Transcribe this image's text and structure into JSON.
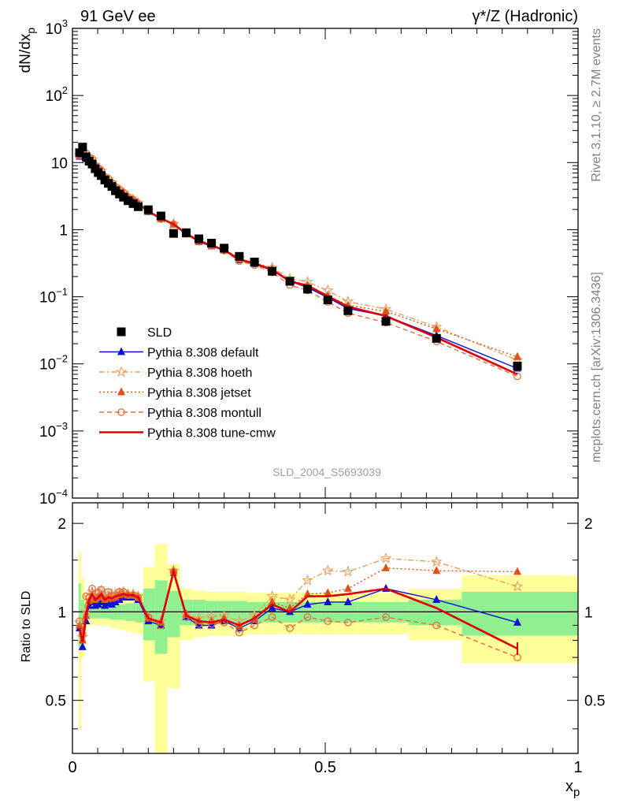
{
  "header": {
    "left": "91 GeV ee",
    "right": "γ*/Z (Hadronic)",
    "side_top": "Rivet 3.1.10, ≥ 2.7M events",
    "side_bottom": "mcplots.cern.ch [arXiv:1306.3436]",
    "watermark": "SLD_2004_S5693039"
  },
  "axis_labels": {
    "ylabel_top": "dN/dx",
    "ylabel_top_sub": "p",
    "ylabel_bottom": "Ratio to SLD",
    "xlabel": "x",
    "xlabel_sub": "p"
  },
  "top_ticks": [
    {
      "v": 1000,
      "b": "10",
      "e": "3"
    },
    {
      "v": 100,
      "b": "10",
      "e": "2"
    },
    {
      "v": 10,
      "b": "10",
      "e": ""
    },
    {
      "v": 1,
      "b": "1",
      "e": ""
    },
    {
      "v": 0.1,
      "b": "10",
      "e": "−1"
    },
    {
      "v": 0.01,
      "b": "10",
      "e": "−2"
    },
    {
      "v": 0.001,
      "b": "10",
      "e": "−3"
    },
    {
      "v": 0.0001,
      "b": "10",
      "e": "−4"
    }
  ],
  "ratio_ticks": [
    "0.5",
    "1",
    "2"
  ],
  "x_ticks": [
    "0",
    "0.5",
    "1"
  ],
  "colors": {
    "default": "#1010d0",
    "hoeth": "#e8a060",
    "jetset": "#e05010",
    "montull": "#e07040",
    "tunecmw": "#e00000",
    "band_green": "#90f090",
    "band_yellow": "#ffff99"
  },
  "chart_data": {
    "type": "scatter",
    "x": [
      0.014,
      0.02,
      0.027,
      0.033,
      0.039,
      0.045,
      0.051,
      0.057,
      0.064,
      0.071,
      0.078,
      0.085,
      0.093,
      0.101,
      0.11,
      0.12,
      0.13,
      0.15,
      0.175,
      0.2,
      0.225,
      0.25,
      0.275,
      0.3,
      0.33,
      0.36,
      0.395,
      0.43,
      0.465,
      0.505,
      0.545,
      0.62,
      0.72,
      0.88
    ],
    "xlim": [
      0,
      1
    ],
    "ylim_top": [
      0.0001,
      1000
    ],
    "ylim_ratio": [
      0.33,
      2.35
    ],
    "yscale": "log",
    "series": [
      {
        "name": "SLD",
        "key": "sld",
        "values": [
          14,
          17,
          12.2,
          10.5,
          9.5,
          8.1,
          7.1,
          6.4,
          5.5,
          4.9,
          4.4,
          3.8,
          3.4,
          3.05,
          2.7,
          2.45,
          2.2,
          1.98,
          1.6,
          0.88,
          0.9,
          0.73,
          0.63,
          0.53,
          0.4,
          0.33,
          0.24,
          0.17,
          0.13,
          0.09,
          0.062,
          0.043,
          0.024,
          0.0093
        ]
      },
      {
        "name": "Pythia 8.308 default",
        "key": "default",
        "ratio": [
          0.88,
          0.76,
          0.93,
          1.05,
          1.08,
          1.05,
          1.06,
          1.08,
          1.05,
          1.07,
          1.06,
          1.08,
          1.1,
          1.12,
          1.12,
          1.12,
          1.1,
          0.93,
          0.9,
          1.36,
          0.96,
          0.9,
          0.9,
          0.93,
          0.88,
          0.93,
          1.03,
          1.0,
          1.06,
          1.08,
          1.08,
          1.2,
          1.1,
          0.92
        ]
      },
      {
        "name": "Pythia 8.308 hoeth",
        "key": "hoeth",
        "ratio": [
          0.92,
          0.82,
          1.0,
          1.12,
          1.17,
          1.14,
          1.17,
          1.18,
          1.13,
          1.15,
          1.15,
          1.15,
          1.16,
          1.17,
          1.15,
          1.15,
          1.13,
          0.96,
          0.93,
          1.38,
          0.98,
          0.95,
          0.96,
          0.97,
          0.93,
          0.97,
          1.13,
          1.1,
          1.28,
          1.38,
          1.37,
          1.52,
          1.48,
          1.22
        ]
      },
      {
        "name": "Pythia 8.308 jetset",
        "key": "jetset",
        "ratio": [
          0.9,
          0.8,
          0.97,
          1.09,
          1.12,
          1.1,
          1.12,
          1.13,
          1.1,
          1.12,
          1.11,
          1.12,
          1.14,
          1.15,
          1.14,
          1.14,
          1.12,
          0.95,
          0.92,
          1.38,
          0.98,
          0.93,
          0.93,
          0.95,
          0.9,
          0.95,
          1.08,
          1.03,
          1.15,
          1.16,
          1.2,
          1.41,
          1.38,
          1.37
        ]
      },
      {
        "name": "Pythia 8.308 montull",
        "key": "montull",
        "ratio": [
          0.93,
          0.84,
          1.13,
          1.12,
          1.2,
          1.11,
          1.16,
          1.19,
          1.11,
          1.17,
          1.13,
          1.14,
          1.17,
          1.17,
          1.14,
          1.14,
          1.12,
          0.96,
          0.9,
          1.37,
          0.96,
          0.91,
          0.91,
          0.92,
          0.85,
          0.9,
          0.96,
          0.88,
          0.96,
          0.93,
          0.92,
          0.96,
          0.9,
          0.7
        ]
      },
      {
        "name": "Pythia 8.308 tune-cmw",
        "key": "tunecmw",
        "ratio": [
          0.88,
          0.79,
          0.98,
          1.1,
          1.15,
          1.1,
          1.12,
          1.15,
          1.1,
          1.12,
          1.11,
          1.13,
          1.14,
          1.15,
          1.14,
          1.14,
          1.12,
          0.95,
          0.92,
          1.37,
          0.97,
          0.93,
          0.92,
          0.94,
          0.9,
          0.95,
          1.06,
          1.0,
          1.13,
          1.13,
          1.15,
          1.2,
          1.03,
          0.75
        ]
      }
    ],
    "bands": {
      "edges": [
        0.012,
        0.017,
        0.024,
        0.03,
        0.036,
        0.042,
        0.048,
        0.054,
        0.06,
        0.067,
        0.074,
        0.081,
        0.089,
        0.097,
        0.105,
        0.115,
        0.125,
        0.14,
        0.163,
        0.188,
        0.213,
        0.238,
        0.263,
        0.288,
        0.315,
        0.345,
        0.375,
        0.415,
        0.445,
        0.485,
        0.525,
        0.565,
        0.665,
        0.77,
        1.0
      ],
      "green": [
        0.25,
        0.1,
        0.05,
        0.05,
        0.05,
        0.05,
        0.05,
        0.05,
        0.05,
        0.05,
        0.06,
        0.06,
        0.06,
        0.06,
        0.07,
        0.07,
        0.08,
        0.2,
        0.28,
        0.18,
        0.1,
        0.1,
        0.09,
        0.09,
        0.09,
        0.08,
        0.08,
        0.08,
        0.08,
        0.08,
        0.08,
        0.08,
        0.1,
        0.17,
        0.17
      ],
      "yellow": [
        0.6,
        0.3,
        0.15,
        0.1,
        0.1,
        0.1,
        0.1,
        0.1,
        0.1,
        0.1,
        0.12,
        0.12,
        0.13,
        0.13,
        0.14,
        0.15,
        0.16,
        0.42,
        0.7,
        0.45,
        0.2,
        0.18,
        0.17,
        0.17,
        0.17,
        0.16,
        0.16,
        0.16,
        0.16,
        0.16,
        0.16,
        0.16,
        0.2,
        0.33,
        0.33
      ]
    }
  }
}
